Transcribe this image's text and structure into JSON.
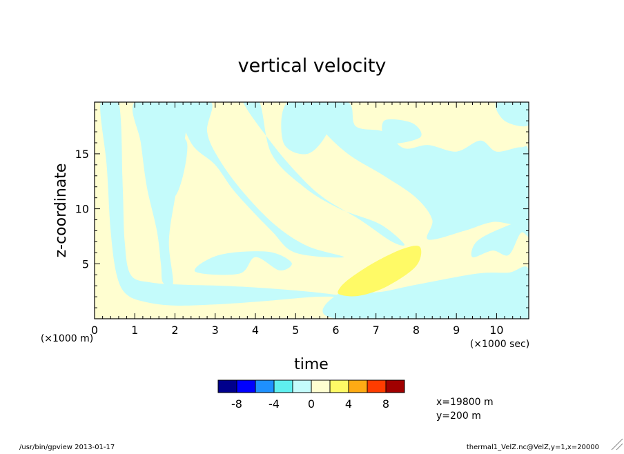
{
  "footer": {
    "left": "/usr/bin/gpview  2013-01-17",
    "right": "thermal1_VelZ.nc@VelZ,y=1,x=20000"
  },
  "info": {
    "line1": "x=19800  m",
    "line2": "y=200  m"
  },
  "chart_data": {
    "type": "heatmap",
    "title": "vertical velocity",
    "xlabel": "time",
    "ylabel": "z-coordinate",
    "x_unit_label": "(×1000 sec)",
    "y_unit_label": "(×1000 m)",
    "xlim": [
      0,
      10.8
    ],
    "ylim": [
      0,
      19.7
    ],
    "x_ticks": [
      0,
      1,
      2,
      3,
      4,
      5,
      6,
      7,
      8,
      9,
      10
    ],
    "y_ticks": [
      5,
      10,
      15
    ],
    "colorbar": {
      "levels": [
        -10,
        -8,
        -6,
        -4,
        -2,
        0,
        2,
        4,
        6,
        8,
        10
      ],
      "colors": [
        "#00008c",
        "#0000ff",
        "#1e90ff",
        "#5fefef",
        "#c4fbfb",
        "#fffed0",
        "#fffa66",
        "#ffab14",
        "#ff3c00",
        "#a00000"
      ],
      "tick_labels": [
        "-8",
        "-4",
        "0",
        "4",
        "8"
      ],
      "tick_values": [
        -8,
        -4,
        0,
        4,
        8
      ]
    },
    "regions": [
      {
        "category": "negative (-2 to 0)",
        "color": "#c4fbfb",
        "shapes": [
          [
            [
              0.15,
              19.7
            ],
            [
              0.3,
              14
            ],
            [
              0.4,
              8
            ],
            [
              0.55,
              4
            ],
            [
              0.8,
              2.2
            ],
            [
              1.3,
              1.5
            ],
            [
              2,
              1.2
            ],
            [
              3,
              1.3
            ],
            [
              4.2,
              1.6
            ],
            [
              5.5,
              2
            ],
            [
              6.3,
              2
            ],
            [
              5.5,
              2.4
            ],
            [
              4.2,
              2.8
            ],
            [
              3.2,
              3
            ],
            [
              2.2,
              3.1
            ],
            [
              1.4,
              3.3
            ],
            [
              0.9,
              4
            ],
            [
              0.75,
              7
            ],
            [
              0.7,
              12
            ],
            [
              0.6,
              19.7
            ]
          ],
          [
            [
              1,
              19.7
            ],
            [
              1.15,
              16
            ],
            [
              1.3,
              12
            ],
            [
              1.55,
              8
            ],
            [
              1.65,
              5
            ],
            [
              1.7,
              3.3
            ],
            [
              1.95,
              3.2
            ],
            [
              1.85,
              7
            ],
            [
              2,
              11
            ],
            [
              2.2,
              15
            ],
            [
              2.2,
              19.7
            ]
          ],
          [
            [
              1.5,
              16
            ],
            [
              1.6,
              12.5
            ],
            [
              1.95,
              11
            ],
            [
              2.2,
              13
            ],
            [
              2.3,
              16
            ],
            [
              2,
              16.5
            ]
          ],
          [
            [
              2.1,
              19.7
            ],
            [
              2.4,
              16
            ],
            [
              3,
              14
            ],
            [
              3.5,
              11.5
            ],
            [
              4.4,
              8
            ],
            [
              5,
              6
            ],
            [
              6.2,
              5.6
            ],
            [
              5.3,
              6.6
            ],
            [
              4.5,
              8.5
            ],
            [
              3.7,
              11.5
            ],
            [
              3.1,
              14.5
            ],
            [
              2.8,
              17
            ],
            [
              2.9,
              19.7
            ]
          ],
          [
            [
              3.7,
              19.7
            ],
            [
              4.4,
              16
            ],
            [
              5.1,
              13
            ],
            [
              5.7,
              11
            ],
            [
              6.6,
              9
            ],
            [
              7.4,
              7
            ],
            [
              7.7,
              6.8
            ],
            [
              7.1,
              8.6
            ],
            [
              6.1,
              10
            ],
            [
              5.2,
              12
            ],
            [
              4.4,
              15
            ],
            [
              4.1,
              19.7
            ]
          ],
          [
            [
              5.3,
              19.7
            ],
            [
              5.6,
              17.5
            ],
            [
              6.3,
              15
            ],
            [
              7.2,
              13
            ],
            [
              8,
              11
            ],
            [
              8.4,
              9
            ],
            [
              8.3,
              7.2
            ],
            [
              9.2,
              8
            ],
            [
              9.9,
              8.8
            ],
            [
              10.8,
              9
            ],
            [
              10.8,
              15
            ],
            [
              10.6,
              15.6
            ],
            [
              10,
              15.2
            ],
            [
              9.6,
              16.2
            ],
            [
              9,
              15.2
            ],
            [
              8.3,
              15.8
            ],
            [
              7.7,
              15.5
            ],
            [
              7.2,
              17
            ],
            [
              6.5,
              17.5
            ],
            [
              6.3,
              19.7
            ]
          ],
          [
            [
              7.3,
              16
            ],
            [
              8.1,
              16.5
            ],
            [
              7.9,
              17.8
            ],
            [
              7.2,
              18
            ]
          ],
          [
            [
              4.8,
              19.7
            ],
            [
              4.7,
              16
            ],
            [
              5.3,
              15
            ],
            [
              5.8,
              17
            ],
            [
              5.9,
              19.7
            ]
          ],
          [
            [
              10,
              19.7
            ],
            [
              10.2,
              18
            ],
            [
              10.8,
              17.6
            ],
            [
              10.8,
              19.7
            ]
          ],
          [
            [
              6,
              0
            ],
            [
              6.2,
              2.6
            ],
            [
              7,
              2.4
            ],
            [
              8,
              3.1
            ],
            [
              9.5,
              4.1
            ],
            [
              10.3,
              4.2
            ],
            [
              10.8,
              4.5
            ],
            [
              10.8,
              0
            ]
          ],
          [
            [
              2.5,
              4.3
            ],
            [
              3.6,
              4.1
            ],
            [
              4,
              5.6
            ],
            [
              4.6,
              4.4
            ],
            [
              4.9,
              5.1
            ],
            [
              4.3,
              6.1
            ],
            [
              3.1,
              5.8
            ]
          ],
          [
            [
              9.4,
              5.6
            ],
            [
              9.9,
              6.2
            ],
            [
              10.3,
              5.8
            ],
            [
              10.6,
              7.8
            ],
            [
              10.8,
              7.5
            ],
            [
              10.8,
              9
            ],
            [
              10.1,
              8.2
            ],
            [
              9.5,
              7
            ]
          ]
        ]
      },
      {
        "category": "positive (2 to 4)",
        "color": "#fffa66",
        "shapes": [
          [
            [
              6.1,
              2.2
            ],
            [
              6.6,
              2.1
            ],
            [
              7.3,
              3
            ],
            [
              8,
              4.8
            ],
            [
              8.1,
              6.5
            ],
            [
              7.7,
              6.4
            ],
            [
              7,
              5.2
            ],
            [
              6.4,
              3.8
            ],
            [
              6.1,
              2.8
            ]
          ]
        ]
      }
    ]
  }
}
